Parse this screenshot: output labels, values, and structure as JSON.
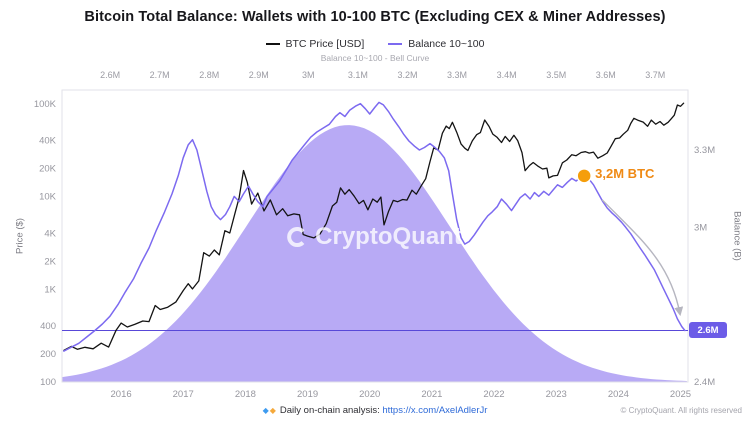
{
  "title": "Bitcoin Total Balance: Wallets with 10-100 BTC (Excluding CEX & Miner Addresses)",
  "legend": [
    {
      "label": "BTC Price [USD]",
      "color": "#111111"
    },
    {
      "label": "Balance 10~100",
      "color": "#7c6af0"
    }
  ],
  "watermark": "CryptoQuant",
  "annotation": {
    "label": "3,2M BTC",
    "color": "#ef8a15"
  },
  "badge": {
    "label": "2.6M",
    "bg": "#6c5ce7",
    "fg": "#ffffff"
  },
  "axes": {
    "top": {
      "title": "Balance 10~100 - Bell Curve",
      "ticks": [
        "2.6M",
        "2.7M",
        "2.8M",
        "2.9M",
        "3M",
        "3.1M",
        "3.2M",
        "3.3M",
        "3.4M",
        "3.5M",
        "3.6M",
        "3.7M"
      ]
    },
    "left": {
      "title": "Price ($)",
      "ticks": [
        "100K",
        "40K",
        "20K",
        "10K",
        "4K",
        "2K",
        "1K",
        "400",
        "200",
        "100"
      ]
    },
    "right": {
      "title": "Balance (B)",
      "ticks": [
        "3.3M",
        "3M",
        "2.4M"
      ]
    },
    "bottom": {
      "ticks": [
        "2016",
        "2017",
        "2018",
        "2019",
        "2020",
        "2021",
        "2022",
        "2023",
        "2024",
        "2025"
      ]
    }
  },
  "footer": {
    "icon1": "◆",
    "icon2": "◆",
    "text": "Daily on-chain analysis: ",
    "link": "https://x.com/AxelAdlerJr",
    "copyright": "© CryptoQuant. All rights reserved"
  },
  "chart_data": {
    "type": "line",
    "title": "Bitcoin Total Balance: Wallets with 10-100 BTC (Excluding CEX & Miner Addresses)",
    "x_range": [
      2015.05,
      2025.12
    ],
    "years": [
      2016,
      2017,
      2018,
      2019,
      2020,
      2021,
      2022,
      2023,
      2024,
      2025
    ],
    "price_axis": {
      "scale": "log",
      "range": [
        100,
        141000
      ],
      "ticks": [
        100000,
        40000,
        20000,
        10000,
        4000,
        2000,
        1000,
        400,
        200,
        100
      ]
    },
    "balance_axis": {
      "scale": "linear",
      "range": [
        2.4,
        3.533
      ],
      "ticks": [
        3.3,
        3.0,
        2.4
      ]
    },
    "bell_axis": {
      "range": [
        2.503,
        3.766
      ],
      "ticks": [
        2.6,
        2.7,
        2.8,
        2.9,
        3.0,
        3.1,
        3.2,
        3.3,
        3.4,
        3.5,
        3.6,
        3.7
      ]
    },
    "bell_curve": {
      "center": 3.08,
      "sigma": 0.205,
      "peak_fraction": 0.88,
      "color": "#b8aaf5"
    },
    "hline_balance": 2.6,
    "annotation_point": {
      "x": 2023.45,
      "balance": 3.2
    },
    "colors": {
      "hline": "#5848d8",
      "marker": "#f59e0b",
      "arrow": "#b6b6c0"
    },
    "series": [
      {
        "name": "BTC Price [USD]",
        "axis": "price",
        "color": "#141414",
        "width": 1.3,
        "points": [
          [
            2015.08,
            220
          ],
          [
            2015.2,
            242
          ],
          [
            2015.3,
            225
          ],
          [
            2015.42,
            237
          ],
          [
            2015.55,
            228
          ],
          [
            2015.68,
            262
          ],
          [
            2015.8,
            238
          ],
          [
            2015.92,
            362
          ],
          [
            2016.0,
            432
          ],
          [
            2016.1,
            392
          ],
          [
            2016.22,
            418
          ],
          [
            2016.35,
            455
          ],
          [
            2016.45,
            448
          ],
          [
            2016.55,
            668
          ],
          [
            2016.63,
            605
          ],
          [
            2016.75,
            640
          ],
          [
            2016.88,
            728
          ],
          [
            2017.0,
            968
          ],
          [
            2017.08,
            1150
          ],
          [
            2017.15,
            1010
          ],
          [
            2017.25,
            1230
          ],
          [
            2017.33,
            2480
          ],
          [
            2017.42,
            2280
          ],
          [
            2017.5,
            2650
          ],
          [
            2017.58,
            2350
          ],
          [
            2017.67,
            4280
          ],
          [
            2017.75,
            4050
          ],
          [
            2017.83,
            6500
          ],
          [
            2017.9,
            9800
          ],
          [
            2017.97,
            19100
          ],
          [
            2018.03,
            14200
          ],
          [
            2018.1,
            8300
          ],
          [
            2018.2,
            10900
          ],
          [
            2018.3,
            7000
          ],
          [
            2018.4,
            9200
          ],
          [
            2018.5,
            6350
          ],
          [
            2018.6,
            7400
          ],
          [
            2018.68,
            6200
          ],
          [
            2018.78,
            6500
          ],
          [
            2018.87,
            6350
          ],
          [
            2018.93,
            3900
          ],
          [
            2019.0,
            3750
          ],
          [
            2019.1,
            3580
          ],
          [
            2019.2,
            3950
          ],
          [
            2019.3,
            5100
          ],
          [
            2019.4,
            7900
          ],
          [
            2019.47,
            8700
          ],
          [
            2019.53,
            12400
          ],
          [
            2019.6,
            10600
          ],
          [
            2019.67,
            11900
          ],
          [
            2019.75,
            10100
          ],
          [
            2019.83,
            8400
          ],
          [
            2019.9,
            9100
          ],
          [
            2019.97,
            7200
          ],
          [
            2020.05,
            9400
          ],
          [
            2020.12,
            8700
          ],
          [
            2020.18,
            9900
          ],
          [
            2020.23,
            4950
          ],
          [
            2020.3,
            6850
          ],
          [
            2020.38,
            9100
          ],
          [
            2020.45,
            8800
          ],
          [
            2020.53,
            9300
          ],
          [
            2020.6,
            9150
          ],
          [
            2020.68,
            11700
          ],
          [
            2020.75,
            10600
          ],
          [
            2020.83,
            13100
          ],
          [
            2020.9,
            15600
          ],
          [
            2020.97,
            23800
          ],
          [
            2021.03,
            33500
          ],
          [
            2021.1,
            31800
          ],
          [
            2021.17,
            48200
          ],
          [
            2021.23,
            57500
          ],
          [
            2021.28,
            54000
          ],
          [
            2021.33,
            63200
          ],
          [
            2021.4,
            49500
          ],
          [
            2021.47,
            36800
          ],
          [
            2021.53,
            33200
          ],
          [
            2021.58,
            31400
          ],
          [
            2021.65,
            39800
          ],
          [
            2021.72,
            46500
          ],
          [
            2021.78,
            48900
          ],
          [
            2021.85,
            66900
          ],
          [
            2021.92,
            57000
          ],
          [
            2021.98,
            47200
          ],
          [
            2022.05,
            43400
          ],
          [
            2022.12,
            38300
          ],
          [
            2022.18,
            44500
          ],
          [
            2022.25,
            39200
          ],
          [
            2022.32,
            45800
          ],
          [
            2022.38,
            40100
          ],
          [
            2022.45,
            29800
          ],
          [
            2022.5,
            19000
          ],
          [
            2022.57,
            21600
          ],
          [
            2022.63,
            23300
          ],
          [
            2022.7,
            21400
          ],
          [
            2022.78,
            19800
          ],
          [
            2022.85,
            20200
          ],
          [
            2022.88,
            15900
          ],
          [
            2022.95,
            16700
          ],
          [
            2023.02,
            16900
          ],
          [
            2023.1,
            23100
          ],
          [
            2023.17,
            24800
          ],
          [
            2023.25,
            28300
          ],
          [
            2023.32,
            27600
          ],
          [
            2023.4,
            29900
          ],
          [
            2023.47,
            30500
          ],
          [
            2023.53,
            29400
          ],
          [
            2023.6,
            30200
          ],
          [
            2023.67,
            25900
          ],
          [
            2023.75,
            27600
          ],
          [
            2023.82,
            29500
          ],
          [
            2023.88,
            34600
          ],
          [
            2023.95,
            42100
          ],
          [
            2024.02,
            42800
          ],
          [
            2024.08,
            47100
          ],
          [
            2024.15,
            51800
          ],
          [
            2024.2,
            61500
          ],
          [
            2024.25,
            69800
          ],
          [
            2024.32,
            66200
          ],
          [
            2024.4,
            63500
          ],
          [
            2024.47,
            57200
          ],
          [
            2024.53,
            66800
          ],
          [
            2024.6,
            60300
          ],
          [
            2024.67,
            64500
          ],
          [
            2024.73,
            58900
          ],
          [
            2024.8,
            63200
          ],
          [
            2024.85,
            68900
          ],
          [
            2024.9,
            75500
          ],
          [
            2024.95,
            97200
          ],
          [
            2025.0,
            94100
          ],
          [
            2025.05,
            101500
          ]
        ]
      },
      {
        "name": "Balance 10~100",
        "axis": "balance",
        "color": "#7c6af0",
        "width": 1.5,
        "points": [
          [
            2015.08,
            2.52
          ],
          [
            2015.2,
            2.535
          ],
          [
            2015.32,
            2.55
          ],
          [
            2015.45,
            2.575
          ],
          [
            2015.58,
            2.6
          ],
          [
            2015.7,
            2.625
          ],
          [
            2015.82,
            2.655
          ],
          [
            2015.95,
            2.7
          ],
          [
            2016.07,
            2.75
          ],
          [
            2016.2,
            2.8
          ],
          [
            2016.32,
            2.86
          ],
          [
            2016.45,
            2.92
          ],
          [
            2016.57,
            2.99
          ],
          [
            2016.7,
            3.06
          ],
          [
            2016.82,
            3.13
          ],
          [
            2016.92,
            3.2
          ],
          [
            2017.0,
            3.27
          ],
          [
            2017.08,
            3.32
          ],
          [
            2017.15,
            3.34
          ],
          [
            2017.22,
            3.3
          ],
          [
            2017.3,
            3.22
          ],
          [
            2017.38,
            3.14
          ],
          [
            2017.45,
            3.08
          ],
          [
            2017.52,
            3.05
          ],
          [
            2017.6,
            3.03
          ],
          [
            2017.68,
            3.05
          ],
          [
            2017.75,
            3.08
          ],
          [
            2017.82,
            3.12
          ],
          [
            2017.9,
            3.1
          ],
          [
            2017.97,
            3.13
          ],
          [
            2018.05,
            3.16
          ],
          [
            2018.12,
            3.13
          ],
          [
            2018.2,
            3.1
          ],
          [
            2018.28,
            3.08
          ],
          [
            2018.35,
            3.12
          ],
          [
            2018.45,
            3.15
          ],
          [
            2018.55,
            3.18
          ],
          [
            2018.65,
            3.22
          ],
          [
            2018.75,
            3.26
          ],
          [
            2018.85,
            3.29
          ],
          [
            2018.95,
            3.32
          ],
          [
            2019.05,
            3.35
          ],
          [
            2019.15,
            3.37
          ],
          [
            2019.25,
            3.385
          ],
          [
            2019.35,
            3.4
          ],
          [
            2019.45,
            3.43
          ],
          [
            2019.52,
            3.445
          ],
          [
            2019.6,
            3.43
          ],
          [
            2019.68,
            3.455
          ],
          [
            2019.77,
            3.47
          ],
          [
            2019.85,
            3.48
          ],
          [
            2019.93,
            3.46
          ],
          [
            2020.0,
            3.44
          ],
          [
            2020.08,
            3.465
          ],
          [
            2020.15,
            3.485
          ],
          [
            2020.22,
            3.475
          ],
          [
            2020.3,
            3.45
          ],
          [
            2020.38,
            3.42
          ],
          [
            2020.47,
            3.39
          ],
          [
            2020.55,
            3.36
          ],
          [
            2020.63,
            3.335
          ],
          [
            2020.72,
            3.315
          ],
          [
            2020.8,
            3.3
          ],
          [
            2020.88,
            3.31
          ],
          [
            2020.97,
            3.325
          ],
          [
            2021.05,
            3.31
          ],
          [
            2021.12,
            3.295
          ],
          [
            2021.2,
            3.27
          ],
          [
            2021.27,
            3.22
          ],
          [
            2021.33,
            3.13
          ],
          [
            2021.4,
            3.03
          ],
          [
            2021.47,
            2.96
          ],
          [
            2021.53,
            2.935
          ],
          [
            2021.6,
            2.945
          ],
          [
            2021.68,
            2.97
          ],
          [
            2021.75,
            2.995
          ],
          [
            2021.82,
            3.02
          ],
          [
            2021.9,
            3.045
          ],
          [
            2021.97,
            3.06
          ],
          [
            2022.05,
            3.08
          ],
          [
            2022.12,
            3.11
          ],
          [
            2022.2,
            3.09
          ],
          [
            2022.28,
            3.065
          ],
          [
            2022.35,
            3.09
          ],
          [
            2022.42,
            3.115
          ],
          [
            2022.5,
            3.13
          ],
          [
            2022.58,
            3.11
          ],
          [
            2022.65,
            3.135
          ],
          [
            2022.72,
            3.12
          ],
          [
            2022.8,
            3.14
          ],
          [
            2022.88,
            3.125
          ],
          [
            2022.95,
            3.145
          ],
          [
            2023.02,
            3.165
          ],
          [
            2023.1,
            3.155
          ],
          [
            2023.18,
            3.175
          ],
          [
            2023.25,
            3.19
          ],
          [
            2023.32,
            3.18
          ],
          [
            2023.4,
            3.195
          ],
          [
            2023.45,
            3.2
          ],
          [
            2023.52,
            3.19
          ],
          [
            2023.6,
            3.165
          ],
          [
            2023.68,
            3.13
          ],
          [
            2023.75,
            3.1
          ],
          [
            2023.82,
            3.075
          ],
          [
            2023.9,
            3.055
          ],
          [
            2023.97,
            3.04
          ],
          [
            2024.05,
            3.02
          ],
          [
            2024.12,
            3.0
          ],
          [
            2024.2,
            2.975
          ],
          [
            2024.28,
            2.945
          ],
          [
            2024.35,
            2.92
          ],
          [
            2024.42,
            2.895
          ],
          [
            2024.5,
            2.865
          ],
          [
            2024.58,
            2.835
          ],
          [
            2024.65,
            2.8
          ],
          [
            2024.72,
            2.765
          ],
          [
            2024.8,
            2.725
          ],
          [
            2024.88,
            2.685
          ],
          [
            2024.95,
            2.645
          ],
          [
            2025.02,
            2.615
          ],
          [
            2025.07,
            2.6
          ]
        ]
      }
    ]
  }
}
